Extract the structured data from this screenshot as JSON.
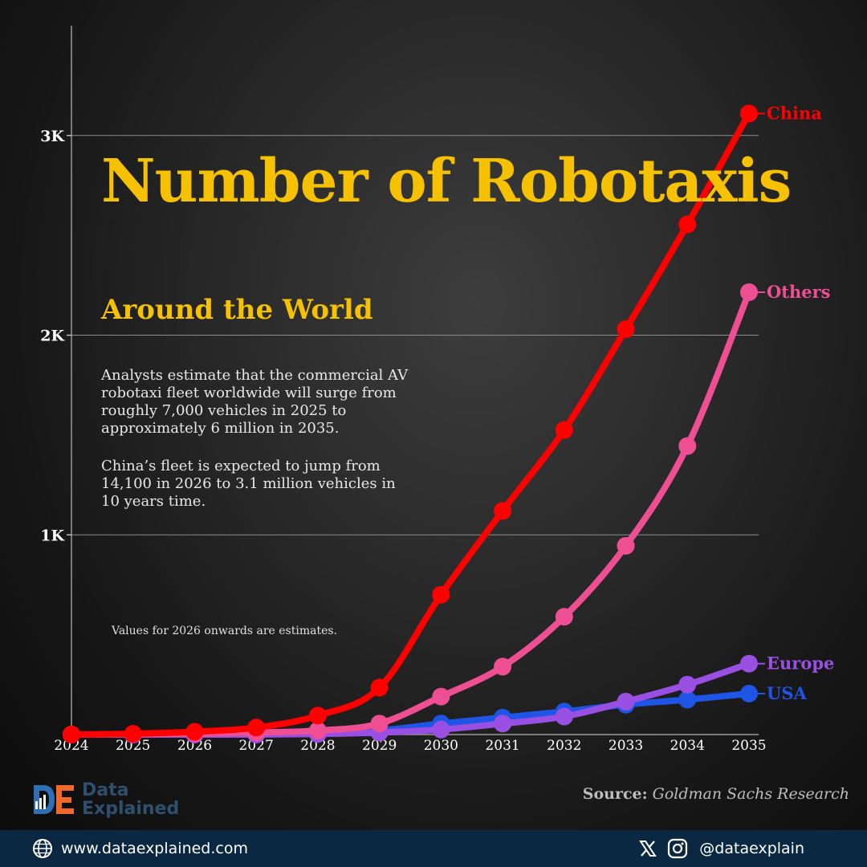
{
  "title": "Number of Robotaxis",
  "subtitle": "Around the World",
  "description": [
    "Analysts estimate that the commercial AV robotaxi fleet worldwide will surge from roughly 7,000 vehicles in 2025 to approximately 6 million in 2035.",
    "China’s fleet is expected to jump from 14,100 in 2026 to 3.1 million vehicles in 10 years time."
  ],
  "note": "Values for 2026 onwards are estimates.",
  "source": {
    "label": "Source:",
    "value": "Goldman Sachs Research"
  },
  "brand": {
    "line1": "Data",
    "line2": "Explained"
  },
  "footer": {
    "website": "www.dataexplained.com",
    "handle": "@dataexplain"
  },
  "icons": {
    "globe": "globe-icon",
    "x": "x-logo-icon",
    "instagram": "instagram-icon",
    "brand": "data-explained-logo"
  },
  "colors": {
    "title": "#f5c100",
    "china": "#ff0000",
    "others": "#ee4f93",
    "europe": "#9a4fe3",
    "usa": "#1f55e6",
    "footer": "#0b2842"
  },
  "chart_data": {
    "type": "line",
    "x": [
      2024,
      2025,
      2026,
      2027,
      2028,
      2029,
      2030,
      2031,
      2032,
      2033,
      2034,
      2035
    ],
    "ylim": [
      0,
      3550
    ],
    "yticks": [
      1000,
      2000,
      3000
    ],
    "ytick_labels": [
      "1K",
      "2K",
      "3K"
    ],
    "grid": true,
    "series": [
      {
        "name": "USA",
        "color": "#1f55e6",
        "values": [
          0,
          0,
          1,
          3,
          8,
          20,
          55,
          85,
          115,
          150,
          175,
          205
        ]
      },
      {
        "name": "Europe",
        "color": "#9a4fe3",
        "values": [
          0,
          0,
          0,
          0,
          3,
          10,
          25,
          55,
          90,
          165,
          250,
          355
        ]
      },
      {
        "name": "Others",
        "color": "#ee4f93",
        "values": [
          0,
          2,
          5,
          10,
          20,
          55,
          190,
          340,
          590,
          945,
          1445,
          2215
        ]
      },
      {
        "name": "China",
        "color": "#ff0000",
        "values": [
          0,
          4,
          14,
          35,
          95,
          235,
          700,
          1120,
          1525,
          2030,
          2555,
          3110
        ]
      }
    ]
  }
}
